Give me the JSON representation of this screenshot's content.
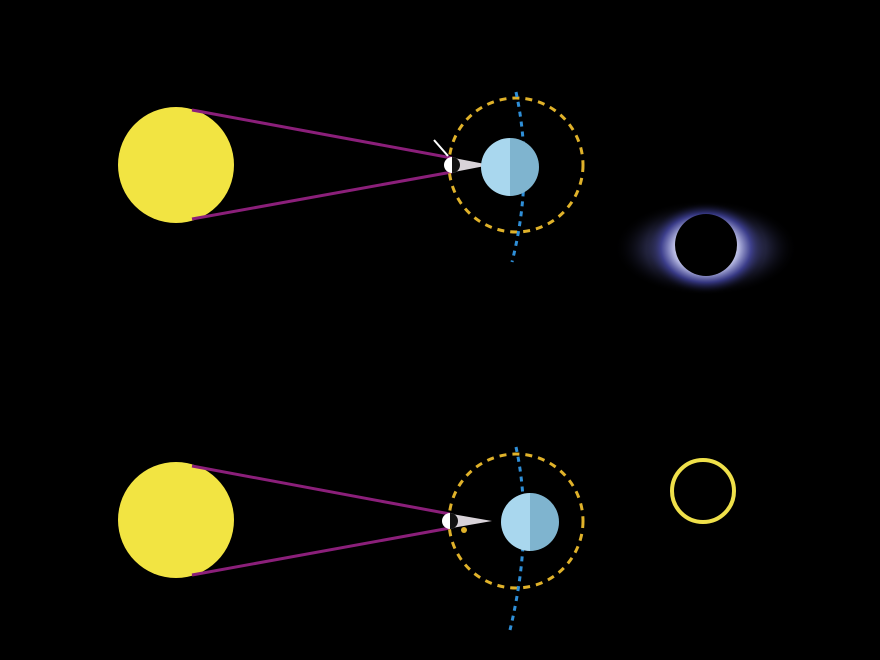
{
  "diagram": {
    "panels": [
      {
        "id": "total-eclipse",
        "result": "corona"
      },
      {
        "id": "annular-eclipse",
        "result": "ring"
      }
    ]
  },
  "colors": {
    "background": "#000000",
    "sun": "#f2e442",
    "sun_rays": "#8b1f7a",
    "moon_light": "#ffffff",
    "moon_dark": "#000000",
    "earth_day": "#a9d7ee",
    "earth_night": "#7fb4cf",
    "orbit": "#e0b22a",
    "earth_axis": "#2f8fd8",
    "shadow_cone": "#d9d3d9",
    "corona_glow": "#2d2f82",
    "ring": "#efe04a"
  }
}
